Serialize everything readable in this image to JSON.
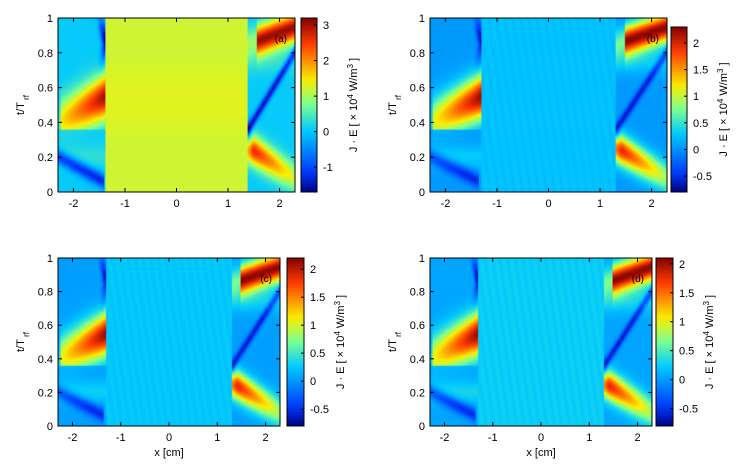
{
  "chart_data": [
    {
      "type": "heatmap",
      "panel_label": "(a)",
      "xlabel": "",
      "ylabel_main": "t/T",
      "ylabel_sub": "rf",
      "colorbar_label": "J · E [ × 10",
      "colorbar_exp": "4",
      "colorbar_unit": " W/m",
      "colorbar_unit_exp": "3",
      "colorbar_close": " ]",
      "xlim": [
        -2.3,
        2.3
      ],
      "ylim": [
        0,
        1
      ],
      "xticks": [
        "-2",
        "-1",
        "0",
        "1",
        "2"
      ],
      "yticks": [
        "0",
        "0.2",
        "0.4",
        "0.6",
        "0.8",
        "1"
      ],
      "clim": [
        -1.7,
        3.2
      ],
      "cticks": [
        "-1",
        "0",
        "1",
        "2",
        "3"
      ],
      "center_value": 1.2,
      "sheath_x": 1.38,
      "hot_peak": 3.0,
      "cold_trough": -1.7
    },
    {
      "type": "heatmap",
      "panel_label": "(b)",
      "xlabel": "",
      "ylabel_main": "t/T",
      "ylabel_sub": "rf",
      "colorbar_label": "J · E [ × 10",
      "colorbar_exp": "4",
      "colorbar_unit": " W/m",
      "colorbar_unit_exp": "3",
      "colorbar_close": " ]",
      "xlim": [
        -2.3,
        2.3
      ],
      "ylim": [
        0,
        1
      ],
      "xticks": [
        "-2",
        "-1",
        "0",
        "1",
        "2"
      ],
      "yticks": [
        "0",
        "0.2",
        "0.4",
        "0.6",
        "0.8",
        "1"
      ],
      "clim": [
        -0.8,
        2.3
      ],
      "cticks": [
        "-0.5",
        "0",
        "0.5",
        "1",
        "1.5",
        "2"
      ],
      "center_value": 0.25,
      "sheath_x": 1.3,
      "hot_peak": 2.2,
      "cold_trough": -0.75
    },
    {
      "type": "heatmap",
      "panel_label": "(c)",
      "xlabel": "x [cm]",
      "ylabel_main": "t/T",
      "ylabel_sub": "rf",
      "colorbar_label": "J · E [ × 10",
      "colorbar_exp": "4",
      "colorbar_unit": " W/m",
      "colorbar_unit_exp": "3",
      "colorbar_close": " ]",
      "xlim": [
        -2.3,
        2.3
      ],
      "ylim": [
        0,
        1
      ],
      "xticks": [
        "-2",
        "-1",
        "0",
        "1",
        "2"
      ],
      "yticks": [
        "0",
        "0.2",
        "0.4",
        "0.6",
        "0.8",
        "1"
      ],
      "clim": [
        -0.8,
        2.2
      ],
      "cticks": [
        "-0.5",
        "0",
        "0.5",
        "1",
        "1.5",
        "2"
      ],
      "center_value": 0.25,
      "sheath_x": 1.3,
      "hot_peak": 2.1,
      "cold_trough": -0.75
    },
    {
      "type": "heatmap",
      "panel_label": "(d)",
      "xlabel": "x [cm]",
      "ylabel_main": "t/T",
      "ylabel_sub": "rf",
      "colorbar_label": "J · E [ × 10",
      "colorbar_exp": "4",
      "colorbar_unit": " W/m",
      "colorbar_unit_exp": "3",
      "colorbar_close": " ]",
      "xlim": [
        -2.3,
        2.3
      ],
      "ylim": [
        0,
        1
      ],
      "xticks": [
        "-2",
        "-1",
        "0",
        "1",
        "2"
      ],
      "yticks": [
        "0",
        "0.2",
        "0.4",
        "0.6",
        "0.8",
        "1"
      ],
      "clim": [
        -0.8,
        2.1
      ],
      "cticks": [
        "-0.5",
        "0",
        "0.5",
        "1",
        "1.5",
        "2"
      ],
      "center_value": 0.25,
      "sheath_x": 1.3,
      "hot_peak": 2.0,
      "cold_trough": -0.75
    }
  ]
}
